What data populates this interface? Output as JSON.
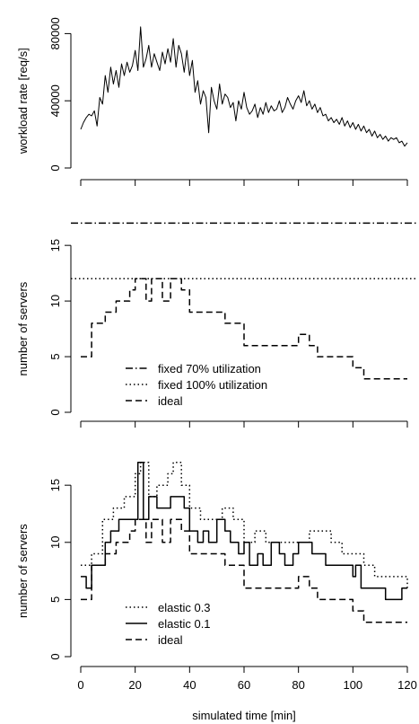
{
  "chart_data": [
    {
      "type": "line",
      "title": "",
      "xlabel": "",
      "ylabel": "workload rate [req/s]",
      "xlim": [
        0,
        120
      ],
      "ylim": [
        0,
        100000
      ],
      "xticks": [
        0,
        20,
        40,
        60,
        80,
        100,
        120
      ],
      "yticks": [
        0,
        40000,
        80000
      ],
      "ytick_labels": [
        "0",
        "40000",
        "80000"
      ],
      "series": [
        {
          "style": "solid",
          "x": [
            0,
            1,
            2,
            3,
            4,
            5,
            6,
            7,
            8,
            9,
            10,
            11,
            12,
            13,
            14,
            15,
            16,
            17,
            18,
            19,
            20,
            21,
            22,
            23,
            24,
            25,
            26,
            27,
            28,
            29,
            30,
            31,
            32,
            33,
            34,
            35,
            36,
            37,
            38,
            39,
            40,
            41,
            42,
            43,
            44,
            45,
            46,
            47,
            48,
            49,
            50,
            51,
            52,
            53,
            54,
            55,
            56,
            57,
            58,
            59,
            60,
            61,
            62,
            63,
            64,
            65,
            66,
            67,
            68,
            69,
            70,
            71,
            72,
            73,
            74,
            75,
            76,
            77,
            78,
            79,
            80,
            81,
            82,
            83,
            84,
            85,
            86,
            87,
            88,
            89,
            90,
            91,
            92,
            93,
            94,
            95,
            96,
            97,
            98,
            99,
            100,
            101,
            102,
            103,
            104,
            105,
            106,
            107,
            108,
            109,
            110,
            111,
            112,
            113,
            114,
            115,
            116,
            117,
            118,
            119,
            120
          ],
          "values": [
            23000,
            27000,
            30000,
            32000,
            31000,
            34000,
            25000,
            42000,
            38000,
            55000,
            45000,
            60000,
            50000,
            58000,
            48000,
            62000,
            55000,
            63000,
            57000,
            61000,
            70000,
            58000,
            84000,
            60000,
            65000,
            73000,
            60000,
            68000,
            63000,
            58000,
            69000,
            62000,
            71000,
            63000,
            77000,
            60000,
            73000,
            68000,
            57000,
            70000,
            55000,
            64000,
            45000,
            52000,
            38000,
            46000,
            42000,
            21000,
            48000,
            40000,
            35000,
            50000,
            38000,
            44000,
            42000,
            36000,
            39000,
            28000,
            40000,
            35000,
            45000,
            36000,
            32000,
            34000,
            38000,
            30000,
            36000,
            32000,
            39000,
            33000,
            37000,
            34000,
            35000,
            40000,
            33000,
            36000,
            42000,
            38000,
            35000,
            40000,
            43000,
            39000,
            46000,
            37000,
            40000,
            35000,
            38000,
            33000,
            36000,
            31000,
            32000,
            28000,
            30000,
            27000,
            29000,
            26000,
            30000,
            25000,
            28000,
            24000,
            27000,
            23000,
            26000,
            22000,
            25000,
            21000,
            23000,
            19000,
            22000,
            18000,
            20000,
            17000,
            19000,
            16000,
            18000,
            17000,
            18000,
            15000,
            16000,
            13000,
            15000
          ]
        }
      ]
    },
    {
      "type": "line",
      "title": "",
      "xlabel": "",
      "ylabel": "number of servers",
      "xlim": [
        0,
        120
      ],
      "ylim": [
        0,
        18
      ],
      "xticks": [
        0,
        20,
        40,
        60,
        80,
        100,
        120
      ],
      "yticks": [
        0,
        5,
        10,
        15
      ],
      "legend": {
        "placement": "bottom-center",
        "entries": [
          {
            "label": "fixed 70% utilization",
            "style": "dashdot"
          },
          {
            "label": "fixed 100% utilization",
            "style": "dotted"
          },
          {
            "label": "ideal",
            "style": "dashed"
          }
        ]
      },
      "series": [
        {
          "name": "fixed 70% utilization",
          "style": "dashdot",
          "x": [
            -5,
            125
          ],
          "values": [
            17,
            17
          ]
        },
        {
          "name": "fixed 100% utilization",
          "style": "dotted",
          "x": [
            -5,
            125
          ],
          "values": [
            12,
            12
          ]
        },
        {
          "name": "ideal",
          "style": "dashed",
          "step": true,
          "x": [
            0,
            4,
            9,
            13,
            18,
            20,
            24,
            26,
            30,
            33,
            37,
            40,
            50,
            53,
            55,
            60,
            70,
            80,
            84,
            87,
            100,
            104,
            108,
            110,
            114,
            120
          ],
          "values": [
            5,
            8,
            9,
            10,
            11,
            12,
            10,
            12,
            10,
            12,
            11,
            9,
            9,
            8,
            8,
            6,
            6,
            7,
            6,
            5,
            4,
            3,
            3,
            3,
            3,
            3
          ]
        }
      ]
    },
    {
      "type": "line",
      "title": "",
      "xlabel": "simulated time [min]",
      "ylabel": "number of servers",
      "xlim": [
        0,
        120
      ],
      "ylim": [
        0,
        18
      ],
      "xticks": [
        0,
        20,
        40,
        60,
        80,
        100,
        120
      ],
      "xtick_labels": [
        "0",
        "20",
        "40",
        "60",
        "80",
        "100",
        "120"
      ],
      "yticks": [
        0,
        5,
        10,
        15
      ],
      "legend": {
        "placement": "bottom-left",
        "entries": [
          {
            "label": "elastic 0.3",
            "style": "dotted"
          },
          {
            "label": "elastic 0.1",
            "style": "solid"
          },
          {
            "label": "ideal",
            "style": "dashed"
          }
        ]
      },
      "series": [
        {
          "name": "elastic 0.3",
          "style": "dotted",
          "step": true,
          "x": [
            0,
            4,
            8,
            12,
            16,
            20,
            22,
            25,
            28,
            32,
            34,
            37,
            40,
            44,
            48,
            52,
            56,
            60,
            64,
            68,
            72,
            76,
            80,
            84,
            88,
            92,
            96,
            100,
            104,
            108,
            112,
            116,
            120
          ],
          "values": [
            8,
            9,
            12,
            13,
            14,
            16,
            17,
            14,
            15,
            16,
            17,
            15,
            13,
            12,
            12,
            13,
            12,
            10,
            11,
            10,
            10,
            10,
            10,
            11,
            11,
            10,
            9,
            9,
            8,
            7,
            7,
            7,
            6
          ]
        },
        {
          "name": "elastic 0.1",
          "style": "solid",
          "step": true,
          "x": [
            0,
            2,
            4,
            9,
            11,
            14,
            18,
            21,
            23,
            25,
            28,
            33,
            38,
            40,
            43,
            45,
            47,
            50,
            53,
            55,
            58,
            60,
            62,
            65,
            67,
            70,
            73,
            75,
            78,
            80,
            82,
            85,
            90,
            98,
            100,
            101,
            103,
            110,
            112,
            115,
            118,
            120
          ],
          "values": [
            7,
            6,
            8,
            10,
            11,
            12,
            12,
            17,
            12,
            14,
            13,
            14,
            13,
            11,
            10,
            11,
            10,
            12,
            11,
            10,
            9,
            10,
            8,
            9,
            8,
            10,
            9,
            8,
            9,
            10,
            10,
            9,
            8,
            8,
            7,
            8,
            6,
            6,
            5,
            5,
            6,
            6
          ]
        },
        {
          "name": "ideal",
          "style": "dashed",
          "step": true,
          "x": [
            0,
            4,
            9,
            13,
            18,
            20,
            24,
            26,
            30,
            33,
            37,
            40,
            50,
            53,
            55,
            60,
            70,
            80,
            84,
            87,
            100,
            104,
            108,
            110,
            114,
            120
          ],
          "values": [
            5,
            8,
            9,
            10,
            11,
            12,
            10,
            12,
            10,
            12,
            11,
            9,
            9,
            8,
            8,
            6,
            6,
            7,
            6,
            5,
            4,
            3,
            3,
            3,
            3,
            3
          ]
        }
      ]
    }
  ]
}
